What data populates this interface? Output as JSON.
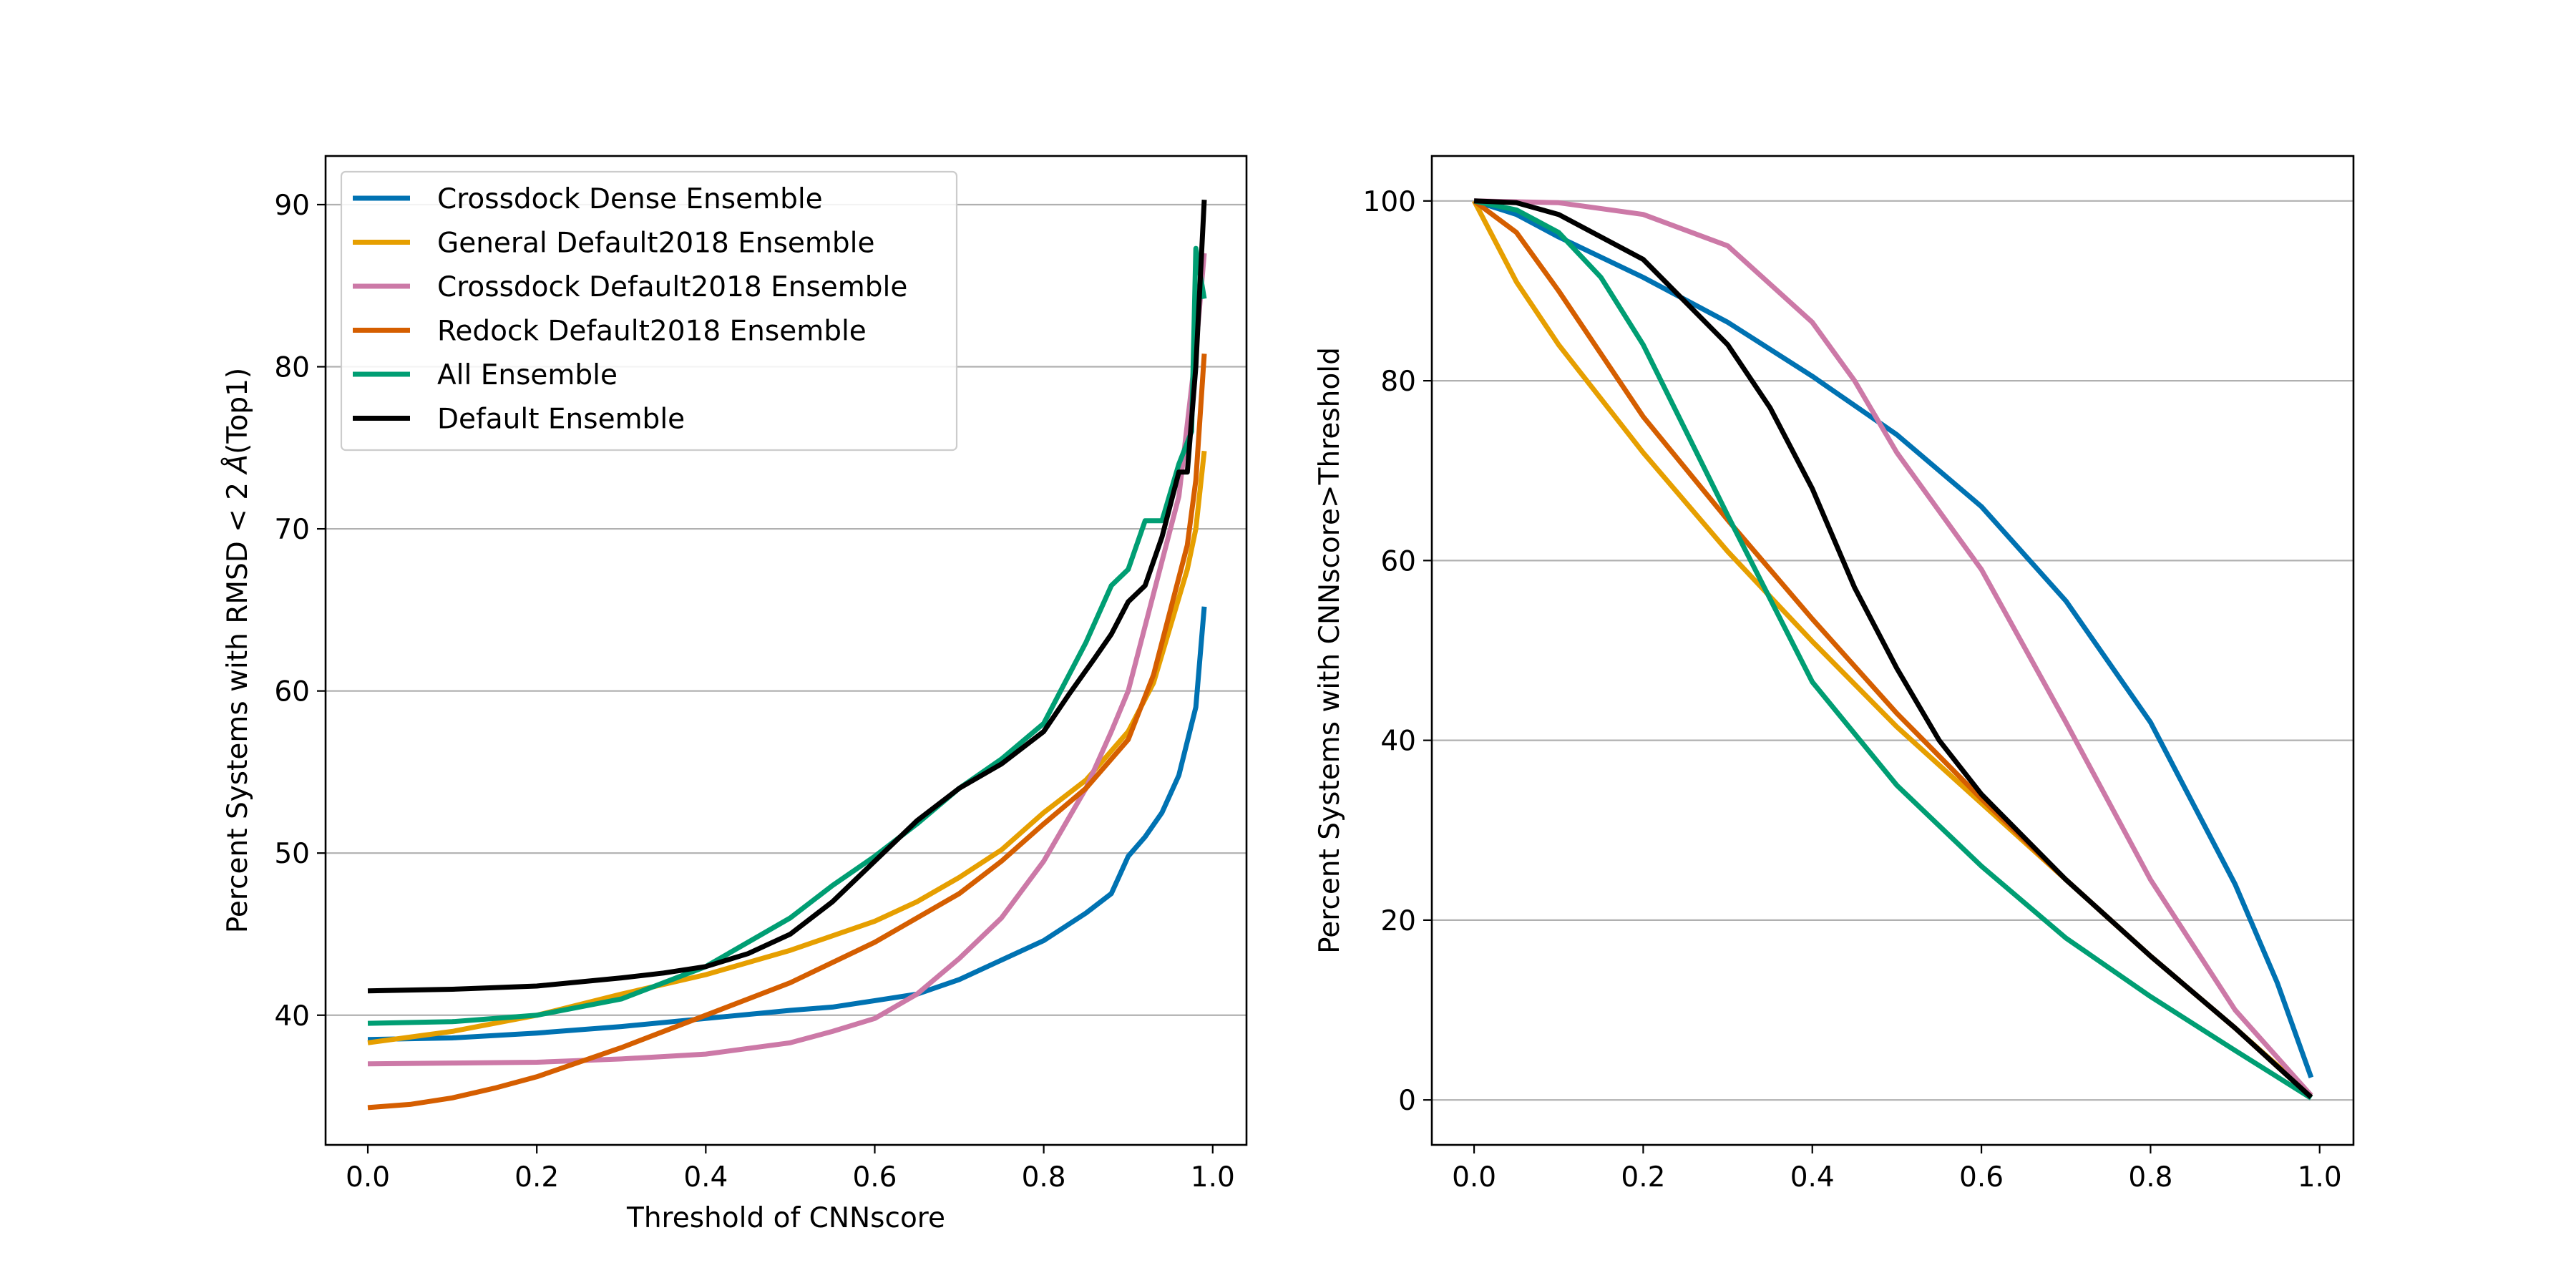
{
  "chart_data": [
    {
      "type": "line",
      "xlabel": "Threshold of CNNscore",
      "ylabel_prefix": "Percent Systems with RMSD < 2 ",
      "ylabel_unit": "Å",
      "ylabel_suffix": "(Top1)",
      "xlim": [
        -0.05,
        1.04
      ],
      "ylim": [
        32,
        93
      ],
      "xticks": [
        0.0,
        0.2,
        0.4,
        0.6,
        0.8,
        1.0
      ],
      "xtick_labels": [
        "0.0",
        "0.2",
        "0.4",
        "0.6",
        "0.8",
        "1.0"
      ],
      "yticks": [
        40,
        50,
        60,
        70,
        80,
        90
      ],
      "ytick_labels": [
        "40",
        "50",
        "60",
        "70",
        "80",
        "90"
      ],
      "grid": "horizontal",
      "legend": "top-left",
      "series": [
        {
          "name": "Crossdock Dense Ensemble",
          "color": "#0072b2",
          "x": [
            0.0,
            0.1,
            0.2,
            0.3,
            0.4,
            0.5,
            0.55,
            0.6,
            0.65,
            0.7,
            0.75,
            0.8,
            0.85,
            0.88,
            0.9,
            0.92,
            0.94,
            0.96,
            0.98,
            0.99
          ],
          "y": [
            38.5,
            38.6,
            38.9,
            39.3,
            39.8,
            40.3,
            40.5,
            40.9,
            41.3,
            42.2,
            43.4,
            44.6,
            46.3,
            47.5,
            49.8,
            51.0,
            52.5,
            54.8,
            59.0,
            65.2
          ]
        },
        {
          "name": "General Default2018 Ensemble",
          "color": "#e69f00",
          "x": [
            0.0,
            0.1,
            0.2,
            0.3,
            0.4,
            0.5,
            0.6,
            0.65,
            0.7,
            0.75,
            0.8,
            0.85,
            0.9,
            0.93,
            0.95,
            0.97,
            0.98,
            0.99
          ],
          "y": [
            38.3,
            39.0,
            40.0,
            41.3,
            42.5,
            44.0,
            45.8,
            47.0,
            48.5,
            50.2,
            52.5,
            54.5,
            57.5,
            60.5,
            64.0,
            67.5,
            70.0,
            74.8
          ]
        },
        {
          "name": "Crossdock Default2018 Ensemble",
          "color": "#cc79a7",
          "x": [
            0.0,
            0.1,
            0.2,
            0.3,
            0.4,
            0.5,
            0.55,
            0.6,
            0.65,
            0.7,
            0.75,
            0.8,
            0.85,
            0.88,
            0.9,
            0.92,
            0.94,
            0.96,
            0.98,
            0.99
          ],
          "y": [
            37.0,
            37.05,
            37.1,
            37.3,
            37.6,
            38.3,
            39.0,
            39.8,
            41.3,
            43.5,
            46.0,
            49.5,
            54.0,
            57.5,
            60.0,
            64.0,
            68.0,
            72.0,
            81.0,
            87.0
          ]
        },
        {
          "name": "Redock Default2018 Ensemble",
          "color": "#d55e00",
          "x": [
            0.0,
            0.05,
            0.1,
            0.15,
            0.2,
            0.3,
            0.4,
            0.5,
            0.6,
            0.7,
            0.75,
            0.8,
            0.85,
            0.9,
            0.93,
            0.95,
            0.97,
            0.98,
            0.99
          ],
          "y": [
            34.3,
            34.5,
            34.9,
            35.5,
            36.2,
            38.0,
            40.0,
            42.0,
            44.5,
            47.5,
            49.5,
            51.8,
            54.0,
            57.0,
            61.0,
            65.0,
            69.0,
            73.0,
            80.8
          ]
        },
        {
          "name": "All Ensemble",
          "color": "#009e73",
          "x": [
            0.0,
            0.1,
            0.2,
            0.3,
            0.4,
            0.5,
            0.55,
            0.6,
            0.65,
            0.7,
            0.75,
            0.8,
            0.82,
            0.85,
            0.88,
            0.9,
            0.92,
            0.94,
            0.96,
            0.975,
            0.98,
            0.99
          ],
          "y": [
            39.5,
            39.6,
            40.0,
            41.0,
            43.0,
            46.0,
            48.0,
            49.8,
            51.8,
            54.0,
            55.8,
            58.0,
            60.0,
            63.0,
            66.5,
            67.5,
            70.5,
            70.5,
            74.0,
            76.0,
            87.3,
            84.2
          ]
        },
        {
          "name": "Default Ensemble",
          "color": "#000000",
          "x": [
            0.0,
            0.1,
            0.2,
            0.3,
            0.35,
            0.4,
            0.45,
            0.5,
            0.55,
            0.6,
            0.65,
            0.7,
            0.75,
            0.8,
            0.83,
            0.86,
            0.88,
            0.9,
            0.92,
            0.94,
            0.96,
            0.97,
            0.98,
            0.99
          ],
          "y": [
            41.5,
            41.6,
            41.8,
            42.3,
            42.6,
            43.0,
            43.8,
            45.0,
            47.0,
            49.5,
            52.0,
            54.0,
            55.5,
            57.5,
            59.8,
            62.0,
            63.5,
            65.5,
            66.5,
            69.5,
            73.5,
            73.5,
            80.0,
            90.3
          ]
        }
      ]
    },
    {
      "type": "line",
      "xlabel": "",
      "ylabel": "Percent Systems with CNNscore>Threshold",
      "xlim": [
        -0.05,
        1.04
      ],
      "ylim": [
        -5,
        105
      ],
      "xticks": [
        0.0,
        0.2,
        0.4,
        0.6,
        0.8,
        1.0
      ],
      "xtick_labels": [
        "0.0",
        "0.2",
        "0.4",
        "0.6",
        "0.8",
        "1.0"
      ],
      "yticks": [
        0,
        20,
        40,
        60,
        80,
        100
      ],
      "ytick_labels": [
        "0",
        "20",
        "40",
        "60",
        "80",
        "100"
      ],
      "grid": "horizontal",
      "series": [
        {
          "name": "Crossdock Dense Ensemble",
          "color": "#0072b2",
          "x": [
            0.0,
            0.05,
            0.1,
            0.2,
            0.3,
            0.4,
            0.5,
            0.6,
            0.7,
            0.8,
            0.9,
            0.95,
            0.99
          ],
          "y": [
            100,
            98.5,
            96.0,
            91.5,
            86.5,
            80.5,
            74.0,
            66.0,
            55.5,
            42.0,
            24.0,
            13.0,
            2.5
          ]
        },
        {
          "name": "General Default2018 Ensemble",
          "color": "#e69f00",
          "x": [
            0.0,
            0.05,
            0.1,
            0.2,
            0.3,
            0.4,
            0.5,
            0.6,
            0.7,
            0.8,
            0.9,
            0.99
          ],
          "y": [
            100,
            91.0,
            84.0,
            72.0,
            61.0,
            51.0,
            41.5,
            33.0,
            24.5,
            16.0,
            8.0,
            0.5
          ]
        },
        {
          "name": "Crossdock Default2018 Ensemble",
          "color": "#cc79a7",
          "x": [
            0.0,
            0.1,
            0.2,
            0.3,
            0.4,
            0.45,
            0.5,
            0.6,
            0.7,
            0.8,
            0.9,
            0.99
          ],
          "y": [
            100,
            99.8,
            98.5,
            95.0,
            86.5,
            80.0,
            72.0,
            59.0,
            42.0,
            24.5,
            10.0,
            0.5
          ]
        },
        {
          "name": "Redock Default2018 Ensemble",
          "color": "#d55e00",
          "x": [
            0.0,
            0.05,
            0.1,
            0.2,
            0.3,
            0.4,
            0.5,
            0.6,
            0.7,
            0.8,
            0.9,
            0.99
          ],
          "y": [
            100,
            96.5,
            90.0,
            76.0,
            64.5,
            53.5,
            43.0,
            33.5,
            24.5,
            16.0,
            8.0,
            0.3
          ]
        },
        {
          "name": "All Ensemble",
          "color": "#009e73",
          "x": [
            0.0,
            0.05,
            0.1,
            0.15,
            0.2,
            0.3,
            0.4,
            0.5,
            0.6,
            0.7,
            0.8,
            0.9,
            0.99
          ],
          "y": [
            100,
            99.0,
            96.5,
            91.5,
            84.0,
            65.0,
            46.5,
            35.0,
            26.0,
            18.0,
            11.5,
            5.5,
            0.2
          ]
        },
        {
          "name": "Default Ensemble",
          "color": "#000000",
          "x": [
            0.0,
            0.05,
            0.1,
            0.2,
            0.3,
            0.35,
            0.4,
            0.45,
            0.5,
            0.55,
            0.6,
            0.7,
            0.8,
            0.9,
            0.99
          ],
          "y": [
            100,
            99.8,
            98.5,
            93.5,
            84.0,
            77.0,
            68.0,
            57.0,
            48.0,
            40.0,
            34.0,
            24.5,
            16.0,
            8.0,
            0.3
          ]
        }
      ]
    }
  ]
}
